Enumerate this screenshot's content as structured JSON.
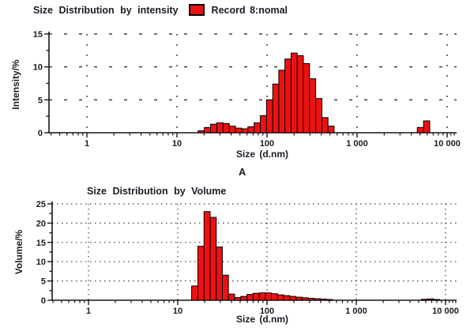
{
  "page": {
    "background": "#ffffff",
    "text_color": "#1b1b26",
    "axis_color": "#15151f",
    "grid_color": "#3d3d46",
    "bar_fill": "#ee1111",
    "bar_stroke": "#000000"
  },
  "panel_label": "A",
  "chart_data": [
    {
      "type": "bar",
      "title": "Size Distribution by intensity",
      "legend": {
        "swatch_color": "#ee1111",
        "label": "Record 8:nomal"
      },
      "xlabel": "Size (d.nm)",
      "ylabel": "Intensity/%",
      "x_scale": "log",
      "xlim": [
        0.4,
        13000
      ],
      "ylim": [
        0,
        15
      ],
      "yticks": [
        0,
        5,
        10,
        15
      ],
      "y_minor_step": 2.5,
      "grid": "dashed",
      "xticks": [
        {
          "v": 1,
          "label": "1"
        },
        {
          "v": 10,
          "label": "10"
        },
        {
          "v": 100,
          "label": "100"
        },
        {
          "v": 1000,
          "label": "1 000"
        },
        {
          "v": 10000,
          "label": "10 000"
        }
      ],
      "runs": [
        [
          [
            18.6,
            0.3
          ],
          [
            21.8,
            0.8
          ],
          [
            25.6,
            1.3
          ],
          [
            30,
            1.5
          ],
          [
            35.2,
            1.4
          ],
          [
            41.2,
            1.0
          ],
          [
            48.4,
            0.7
          ],
          [
            56.6,
            0.6
          ],
          [
            66.4,
            0.9
          ],
          [
            78,
            1.5
          ],
          [
            91,
            2.6
          ],
          [
            107,
            5.0
          ],
          [
            125,
            7.4
          ],
          [
            146,
            9.5
          ],
          [
            171,
            11.2
          ],
          [
            200,
            12.1
          ],
          [
            234,
            11.7
          ],
          [
            274,
            10.5
          ],
          [
            321,
            8.2
          ],
          [
            376,
            5.2
          ],
          [
            440,
            2.3
          ],
          [
            514,
            1.0
          ]
        ],
        [
          [
            5050,
            0.8
          ],
          [
            5920,
            1.8
          ]
        ]
      ]
    },
    {
      "type": "bar",
      "title": "Size Distribution by Volume",
      "xlabel": "Size (d.nm)",
      "ylabel": "Volume/%",
      "x_scale": "log",
      "xlim": [
        0.4,
        13000
      ],
      "ylim": [
        0,
        25
      ],
      "yticks": [
        0,
        5,
        10,
        15,
        20,
        25
      ],
      "y_minor_step": 2.5,
      "grid": "dotted",
      "xticks": [
        {
          "v": 1,
          "label": "1"
        },
        {
          "v": 10,
          "label": "10"
        },
        {
          "v": 100,
          "label": "100"
        },
        {
          "v": 1000,
          "label": "1 000"
        },
        {
          "v": 10000,
          "label": "10 000"
        }
      ],
      "runs": [
        [
          [
            15.5,
            3.7
          ],
          [
            18.2,
            14.0
          ],
          [
            21.3,
            23.0
          ],
          [
            25,
            21.5
          ],
          [
            29.2,
            13.8
          ],
          [
            34.2,
            6.5
          ],
          [
            40,
            1.6
          ],
          [
            47,
            0.7
          ],
          [
            55,
            1.0
          ],
          [
            64.5,
            1.5
          ],
          [
            75.5,
            1.8
          ],
          [
            88.5,
            1.9
          ],
          [
            103.5,
            1.9
          ],
          [
            121,
            1.7
          ],
          [
            142,
            1.4
          ],
          [
            166,
            1.2
          ],
          [
            195,
            1.0
          ],
          [
            228,
            0.8
          ],
          [
            267,
            0.65
          ],
          [
            313,
            0.5
          ],
          [
            366,
            0.4
          ],
          [
            429,
            0.3
          ],
          [
            502,
            0.2
          ]
        ],
        [
          [
            5800,
            0.25
          ],
          [
            6800,
            0.35
          ],
          [
            7950,
            0.2
          ]
        ]
      ]
    }
  ]
}
